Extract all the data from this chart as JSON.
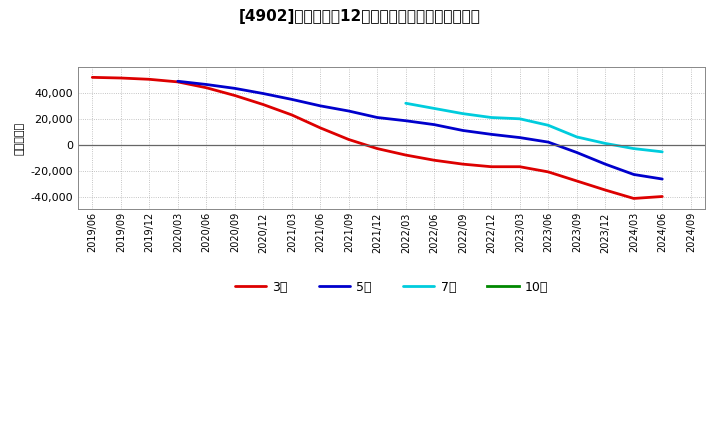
{
  "title": "[4902]　経常利益12か月移動合計の平均値の推移",
  "ylabel": "（百万円）",
  "background_color": "#ffffff",
  "plot_bg_color": "#ffffff",
  "grid_color": "#aaaaaa",
  "ylim": [
    -50000,
    60000
  ],
  "yticks": [
    -40000,
    -20000,
    0,
    20000,
    40000
  ],
  "series": {
    "3年": {
      "color": "#dd0000",
      "label": "3年",
      "x": [
        "2019/06",
        "2019/09",
        "2019/12",
        "2020/03",
        "2020/06",
        "2020/09",
        "2020/12",
        "2021/03",
        "2021/06",
        "2021/09",
        "2021/12",
        "2022/03",
        "2022/06",
        "2022/09",
        "2022/12",
        "2023/03",
        "2023/06",
        "2023/09",
        "2023/12",
        "2024/03",
        "2024/06"
      ],
      "y": [
        52000,
        51500,
        50500,
        48500,
        44000,
        38000,
        31000,
        23000,
        13000,
        4000,
        -3000,
        -8000,
        -12000,
        -15000,
        -17000,
        -17000,
        -21000,
        -28000,
        -35000,
        -41500,
        -40000
      ]
    },
    "5年": {
      "color": "#0000cc",
      "label": "5年",
      "x": [
        "2020/03",
        "2020/06",
        "2020/09",
        "2020/12",
        "2021/03",
        "2021/06",
        "2021/09",
        "2021/12",
        "2022/03",
        "2022/06",
        "2022/09",
        "2022/12",
        "2023/03",
        "2023/06",
        "2023/09",
        "2023/12",
        "2024/03",
        "2024/06"
      ],
      "y": [
        49000,
        46500,
        43500,
        39500,
        35000,
        30000,
        26000,
        21000,
        18500,
        15500,
        11000,
        8000,
        5500,
        2000,
        -6000,
        -15000,
        -23000,
        -26500
      ]
    },
    "7年": {
      "color": "#00ccdd",
      "label": "7年",
      "x": [
        "2022/03",
        "2022/06",
        "2022/09",
        "2022/12",
        "2023/03",
        "2023/06",
        "2023/09",
        "2023/12",
        "2024/03",
        "2024/06"
      ],
      "y": [
        32000,
        28000,
        24000,
        21000,
        20000,
        15000,
        6000,
        1000,
        -3000,
        -5500
      ]
    },
    "10年": {
      "color": "#008800",
      "label": "10年",
      "x": [],
      "y": []
    }
  },
  "xtick_labels": [
    "2019/06",
    "2019/09",
    "2019/12",
    "2020/03",
    "2020/06",
    "2020/09",
    "2020/12",
    "2021/03",
    "2021/06",
    "2021/09",
    "2021/12",
    "2022/03",
    "2022/06",
    "2022/09",
    "2022/12",
    "2023/03",
    "2023/06",
    "2023/09",
    "2023/12",
    "2024/03",
    "2024/06",
    "2024/09"
  ],
  "legend_order": [
    "3年",
    "5年",
    "7年",
    "10年"
  ]
}
